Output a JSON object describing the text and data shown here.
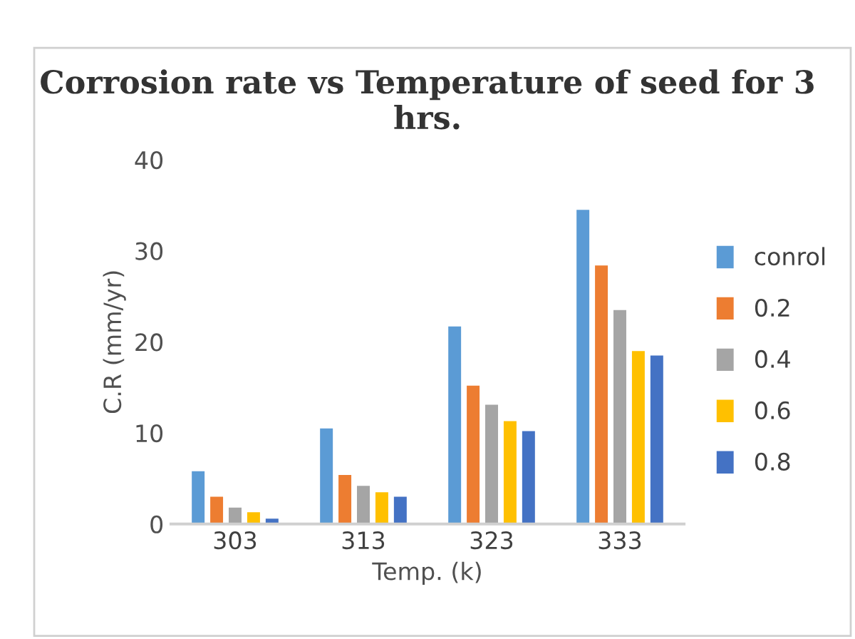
{
  "chart_data": {
    "type": "bar",
    "title": "Corrosion rate vs Temperature of seed for 3 hrs.",
    "xlabel": "Temp. (k)",
    "ylabel": "C.R (mm/yr)",
    "categories": [
      "303",
      "313",
      "323",
      "333"
    ],
    "series": [
      {
        "name": "conrol",
        "color": "#5b9bd5",
        "values": [
          5.9,
          10.6,
          21.8,
          34.6
        ]
      },
      {
        "name": "0.2",
        "color": "#ed7d31",
        "values": [
          3.1,
          5.5,
          15.3,
          28.5
        ]
      },
      {
        "name": "0.4",
        "color": "#a5a5a5",
        "values": [
          1.9,
          4.3,
          13.2,
          23.6
        ]
      },
      {
        "name": "0.6",
        "color": "#ffc000",
        "values": [
          1.4,
          3.6,
          11.4,
          19.1
        ]
      },
      {
        "name": "0.8",
        "color": "#4472c4",
        "values": [
          0.7,
          3.1,
          10.3,
          18.6
        ]
      }
    ],
    "ylim": [
      0,
      40
    ],
    "yticks": [
      0,
      10,
      20,
      30,
      40
    ],
    "grid": false,
    "legend": "right"
  }
}
